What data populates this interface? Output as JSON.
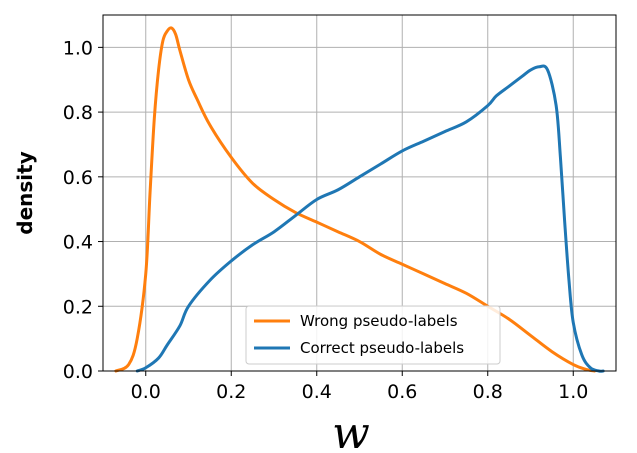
{
  "chart_data": {
    "type": "line",
    "xlabel": "w",
    "ylabel": "density",
    "xlim": [
      -0.1,
      1.1
    ],
    "ylim": [
      0,
      1.1
    ],
    "xticks": [
      0.0,
      0.2,
      0.4,
      0.6,
      0.8,
      1.0
    ],
    "yticks": [
      0.0,
      0.2,
      0.4,
      0.6,
      0.8,
      1.0
    ],
    "xtick_labels": [
      "0.0",
      "0.2",
      "0.4",
      "0.6",
      "0.8",
      "1.0"
    ],
    "ytick_labels": [
      "0.0",
      "0.2",
      "0.4",
      "0.6",
      "0.8",
      "1.0"
    ],
    "grid": true,
    "legend": "bottom-center",
    "series": [
      {
        "name": "Wrong pseudo-labels",
        "color": "#ff7f0e",
        "x": [
          -0.07,
          -0.04,
          -0.02,
          0.0,
          0.01,
          0.02,
          0.03,
          0.04,
          0.05,
          0.06,
          0.07,
          0.08,
          0.1,
          0.12,
          0.15,
          0.2,
          0.25,
          0.3,
          0.35,
          0.4,
          0.45,
          0.5,
          0.55,
          0.6,
          0.65,
          0.7,
          0.75,
          0.8,
          0.85,
          0.9,
          0.95,
          1.0,
          1.03,
          1.05
        ],
        "y": [
          0.0,
          0.02,
          0.1,
          0.3,
          0.55,
          0.78,
          0.93,
          1.02,
          1.05,
          1.06,
          1.04,
          0.99,
          0.9,
          0.84,
          0.76,
          0.66,
          0.58,
          0.53,
          0.49,
          0.46,
          0.43,
          0.4,
          0.36,
          0.33,
          0.3,
          0.27,
          0.24,
          0.2,
          0.16,
          0.11,
          0.06,
          0.02,
          0.005,
          0.0
        ]
      },
      {
        "name": "Correct pseudo-labels",
        "color": "#1f77b4",
        "x": [
          -0.02,
          0.0,
          0.03,
          0.05,
          0.08,
          0.1,
          0.15,
          0.2,
          0.25,
          0.3,
          0.35,
          0.4,
          0.45,
          0.5,
          0.55,
          0.6,
          0.65,
          0.7,
          0.75,
          0.8,
          0.82,
          0.85,
          0.88,
          0.9,
          0.92,
          0.94,
          0.96,
          0.97,
          0.98,
          0.99,
          1.0,
          1.02,
          1.04,
          1.06,
          1.07
        ],
        "y": [
          0.0,
          0.01,
          0.04,
          0.08,
          0.14,
          0.2,
          0.28,
          0.34,
          0.39,
          0.43,
          0.48,
          0.53,
          0.56,
          0.6,
          0.64,
          0.68,
          0.71,
          0.74,
          0.77,
          0.82,
          0.85,
          0.88,
          0.91,
          0.93,
          0.94,
          0.93,
          0.82,
          0.66,
          0.46,
          0.28,
          0.15,
          0.05,
          0.01,
          0.0,
          0.0
        ]
      }
    ]
  }
}
